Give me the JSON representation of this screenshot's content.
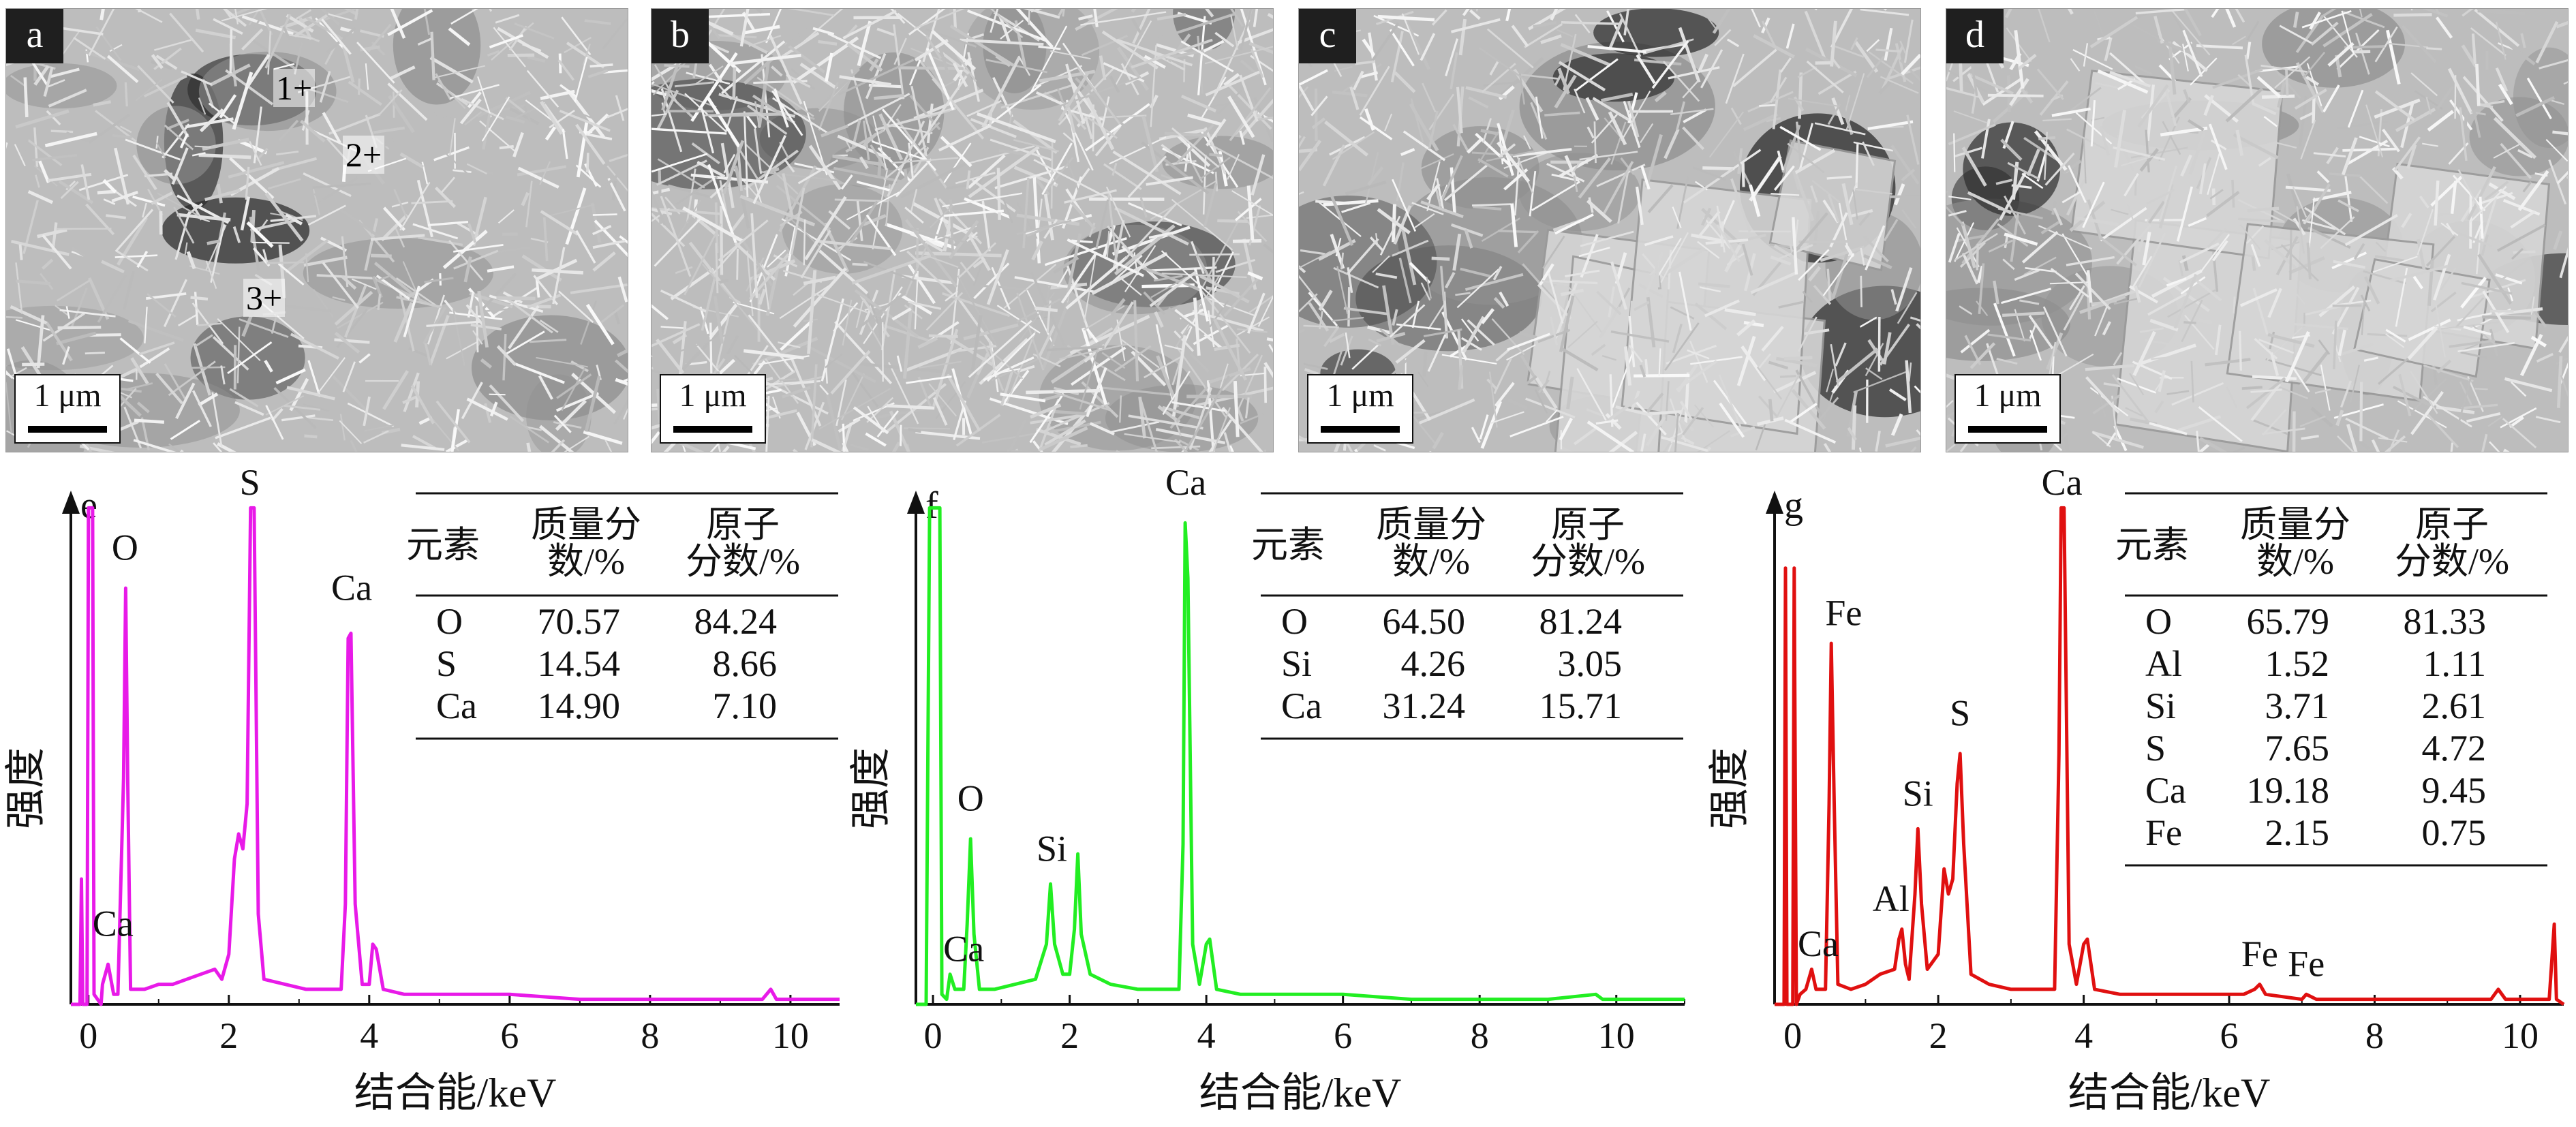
{
  "scale_bar_label": "1 μm",
  "sem_panels": [
    {
      "label": "a",
      "points": [
        "1",
        "2",
        "3"
      ],
      "tone": "dense"
    },
    {
      "label": "b",
      "points": [],
      "tone": "needles"
    },
    {
      "label": "c",
      "points": [],
      "tone": "plates"
    },
    {
      "label": "d",
      "points": [],
      "tone": "plates"
    }
  ],
  "chart_data": [
    {
      "type": "line",
      "panel": "e",
      "color": "#e81ae8",
      "xlabel": "结合能/keV",
      "ylabel": "强度",
      "xlim": [
        -0.25,
        10.7
      ],
      "xticks": [
        0,
        2,
        4,
        6,
        8,
        10
      ],
      "series": [
        {
          "points": [
            [
              -0.25,
              0.0
            ],
            [
              -0.12,
              0.0
            ],
            [
              -0.1,
              0.25
            ],
            [
              -0.08,
              0.0
            ],
            [
              -0.02,
              0.0
            ],
            [
              0.0,
              0.99
            ],
            [
              0.06,
              0.99
            ],
            [
              0.08,
              0.02
            ],
            [
              0.18,
              0.0
            ],
            [
              0.2,
              0.04
            ],
            [
              0.28,
              0.08
            ],
            [
              0.36,
              0.02
            ],
            [
              0.42,
              0.02
            ],
            [
              0.5,
              0.45
            ],
            [
              0.53,
              0.83
            ],
            [
              0.56,
              0.45
            ],
            [
              0.6,
              0.03
            ],
            [
              0.8,
              0.03
            ],
            [
              1.0,
              0.04
            ],
            [
              1.2,
              0.04
            ],
            [
              1.4,
              0.05
            ],
            [
              1.6,
              0.06
            ],
            [
              1.8,
              0.07
            ],
            [
              1.9,
              0.05
            ],
            [
              2.0,
              0.1
            ],
            [
              2.08,
              0.29
            ],
            [
              2.14,
              0.34
            ],
            [
              2.2,
              0.31
            ],
            [
              2.26,
              0.4
            ],
            [
              2.31,
              0.99
            ],
            [
              2.36,
              0.99
            ],
            [
              2.42,
              0.18
            ],
            [
              2.5,
              0.05
            ],
            [
              2.8,
              0.04
            ],
            [
              3.1,
              0.03
            ],
            [
              3.4,
              0.03
            ],
            [
              3.6,
              0.03
            ],
            [
              3.66,
              0.2
            ],
            [
              3.7,
              0.73
            ],
            [
              3.74,
              0.74
            ],
            [
              3.8,
              0.2
            ],
            [
              3.9,
              0.04
            ],
            [
              4.0,
              0.04
            ],
            [
              4.05,
              0.12
            ],
            [
              4.1,
              0.11
            ],
            [
              4.2,
              0.03
            ],
            [
              4.5,
              0.02
            ],
            [
              5.0,
              0.02
            ],
            [
              6.0,
              0.02
            ],
            [
              7.0,
              0.01
            ],
            [
              8.0,
              0.01
            ],
            [
              9.0,
              0.01
            ],
            [
              9.6,
              0.01
            ],
            [
              9.72,
              0.03
            ],
            [
              9.8,
              0.01
            ],
            [
              10.0,
              0.01
            ],
            [
              10.7,
              0.01
            ]
          ]
        }
      ],
      "peak_labels": [
        {
          "text": "O",
          "x": 0.52,
          "y": 0.87
        },
        {
          "text": "S",
          "x": 2.3,
          "y": 1.0
        },
        {
          "text": "Ca",
          "x": 3.75,
          "y": 0.79
        },
        {
          "text": "Ca",
          "x": 0.35,
          "y": 0.12
        }
      ],
      "table": {
        "headers": [
          "元素",
          "质量分\n数/%",
          "原子\n分数/%"
        ],
        "rows": [
          [
            "O",
            "70.57",
            "84.24"
          ],
          [
            "S",
            "14.54",
            "8.66"
          ],
          [
            "Ca",
            "14.90",
            "7.10"
          ]
        ]
      }
    },
    {
      "type": "line",
      "panel": "f",
      "color": "#22ee22",
      "xlabel": "结合能/keV",
      "ylabel": "强度",
      "xlim": [
        -0.25,
        11.0
      ],
      "xticks": [
        0,
        2,
        4,
        6,
        8,
        10
      ],
      "series": [
        {
          "points": [
            [
              -0.25,
              0.0
            ],
            [
              -0.1,
              0.0
            ],
            [
              -0.05,
              0.99
            ],
            [
              0.1,
              0.99
            ],
            [
              0.13,
              0.02
            ],
            [
              0.2,
              0.01
            ],
            [
              0.25,
              0.06
            ],
            [
              0.32,
              0.03
            ],
            [
              0.45,
              0.03
            ],
            [
              0.5,
              0.16
            ],
            [
              0.55,
              0.33
            ],
            [
              0.6,
              0.14
            ],
            [
              0.68,
              0.03
            ],
            [
              0.9,
              0.03
            ],
            [
              1.2,
              0.04
            ],
            [
              1.5,
              0.05
            ],
            [
              1.66,
              0.12
            ],
            [
              1.72,
              0.24
            ],
            [
              1.78,
              0.12
            ],
            [
              1.9,
              0.06
            ],
            [
              2.0,
              0.06
            ],
            [
              2.07,
              0.15
            ],
            [
              2.12,
              0.3
            ],
            [
              2.17,
              0.14
            ],
            [
              2.3,
              0.06
            ],
            [
              2.6,
              0.04
            ],
            [
              3.0,
              0.03
            ],
            [
              3.4,
              0.03
            ],
            [
              3.6,
              0.03
            ],
            [
              3.66,
              0.32
            ],
            [
              3.69,
              0.96
            ],
            [
              3.73,
              0.85
            ],
            [
              3.8,
              0.12
            ],
            [
              3.9,
              0.04
            ],
            [
              4.0,
              0.12
            ],
            [
              4.05,
              0.13
            ],
            [
              4.15,
              0.03
            ],
            [
              4.5,
              0.02
            ],
            [
              5.0,
              0.02
            ],
            [
              6.0,
              0.02
            ],
            [
              7.0,
              0.01
            ],
            [
              8.0,
              0.01
            ],
            [
              9.0,
              0.01
            ],
            [
              9.7,
              0.02
            ],
            [
              9.8,
              0.01
            ],
            [
              11.0,
              0.01
            ]
          ]
        }
      ],
      "peak_labels": [
        {
          "text": "Ca",
          "x": 3.7,
          "y": 1.0
        },
        {
          "text": "O",
          "x": 0.55,
          "y": 0.37
        },
        {
          "text": "Si",
          "x": 1.74,
          "y": 0.27
        },
        {
          "text": "Ca",
          "x": 0.45,
          "y": 0.07
        }
      ],
      "table": {
        "headers": [
          "元素",
          "质量分\n数/%",
          "原子\n分数/%"
        ],
        "rows": [
          [
            "O",
            "64.50",
            "81.24"
          ],
          [
            "Si",
            "4.26",
            "3.05"
          ],
          [
            "Ca",
            "31.24",
            "15.71"
          ]
        ]
      }
    },
    {
      "type": "line",
      "panel": "g",
      "color": "#e01010",
      "xlabel": "结合能/keV",
      "ylabel": "强度",
      "xlim": [
        -0.25,
        10.6
      ],
      "xticks": [
        0,
        2,
        4,
        6,
        8,
        10
      ],
      "series": [
        {
          "points": [
            [
              -0.25,
              0.0
            ],
            [
              -0.12,
              0.0
            ],
            [
              -0.1,
              0.87
            ],
            [
              -0.08,
              0.0
            ],
            [
              0.0,
              0.0
            ],
            [
              0.02,
              0.87
            ],
            [
              0.05,
              0.0
            ],
            [
              0.1,
              0.02
            ],
            [
              0.18,
              0.03
            ],
            [
              0.26,
              0.07
            ],
            [
              0.32,
              0.03
            ],
            [
              0.45,
              0.03
            ],
            [
              0.5,
              0.4
            ],
            [
              0.53,
              0.72
            ],
            [
              0.57,
              0.4
            ],
            [
              0.62,
              0.04
            ],
            [
              0.8,
              0.03
            ],
            [
              1.0,
              0.04
            ],
            [
              1.2,
              0.06
            ],
            [
              1.4,
              0.07
            ],
            [
              1.46,
              0.13
            ],
            [
              1.5,
              0.15
            ],
            [
              1.55,
              0.08
            ],
            [
              1.6,
              0.05
            ],
            [
              1.68,
              0.22
            ],
            [
              1.72,
              0.35
            ],
            [
              1.77,
              0.2
            ],
            [
              1.85,
              0.07
            ],
            [
              2.0,
              0.1
            ],
            [
              2.08,
              0.27
            ],
            [
              2.14,
              0.22
            ],
            [
              2.2,
              0.25
            ],
            [
              2.26,
              0.44
            ],
            [
              2.3,
              0.5
            ],
            [
              2.35,
              0.32
            ],
            [
              2.45,
              0.06
            ],
            [
              2.7,
              0.04
            ],
            [
              3.0,
              0.03
            ],
            [
              3.5,
              0.03
            ],
            [
              3.6,
              0.03
            ],
            [
              3.66,
              0.5
            ],
            [
              3.69,
              0.99
            ],
            [
              3.73,
              0.99
            ],
            [
              3.8,
              0.12
            ],
            [
              3.9,
              0.04
            ],
            [
              4.0,
              0.12
            ],
            [
              4.05,
              0.13
            ],
            [
              4.15,
              0.03
            ],
            [
              4.5,
              0.02
            ],
            [
              5.0,
              0.02
            ],
            [
              5.5,
              0.02
            ],
            [
              5.9,
              0.02
            ],
            [
              6.2,
              0.02
            ],
            [
              6.35,
              0.03
            ],
            [
              6.42,
              0.04
            ],
            [
              6.5,
              0.02
            ],
            [
              7.0,
              0.01
            ],
            [
              7.06,
              0.02
            ],
            [
              7.2,
              0.01
            ],
            [
              8.0,
              0.01
            ],
            [
              9.0,
              0.01
            ],
            [
              9.6,
              0.01
            ],
            [
              9.7,
              0.03
            ],
            [
              9.8,
              0.01
            ],
            [
              10.4,
              0.01
            ],
            [
              10.47,
              0.16
            ],
            [
              10.5,
              0.01
            ],
            [
              10.6,
              0.0
            ]
          ]
        }
      ],
      "peak_labels": [
        {
          "text": "Ca",
          "x": 3.7,
          "y": 1.0
        },
        {
          "text": "Fe",
          "x": 0.7,
          "y": 0.74
        },
        {
          "text": "S",
          "x": 2.3,
          "y": 0.54
        },
        {
          "text": "Si",
          "x": 1.72,
          "y": 0.38
        },
        {
          "text": "Al",
          "x": 1.35,
          "y": 0.17
        },
        {
          "text": "Ca",
          "x": 0.35,
          "y": 0.08
        },
        {
          "text": "Fe",
          "x": 6.42,
          "y": 0.06
        },
        {
          "text": "Fe",
          "x": 7.06,
          "y": 0.04
        }
      ],
      "table": {
        "headers": [
          "元素",
          "质量分\n数/%",
          "原子\n分数/%"
        ],
        "rows": [
          [
            "O",
            "65.79",
            "81.33"
          ],
          [
            "Al",
            "1.52",
            "1.11"
          ],
          [
            "Si",
            "3.71",
            "2.61"
          ],
          [
            "S",
            "7.65",
            "4.72"
          ],
          [
            "Ca",
            "19.18",
            "9.45"
          ],
          [
            "Fe",
            "2.15",
            "0.75"
          ]
        ]
      }
    }
  ]
}
